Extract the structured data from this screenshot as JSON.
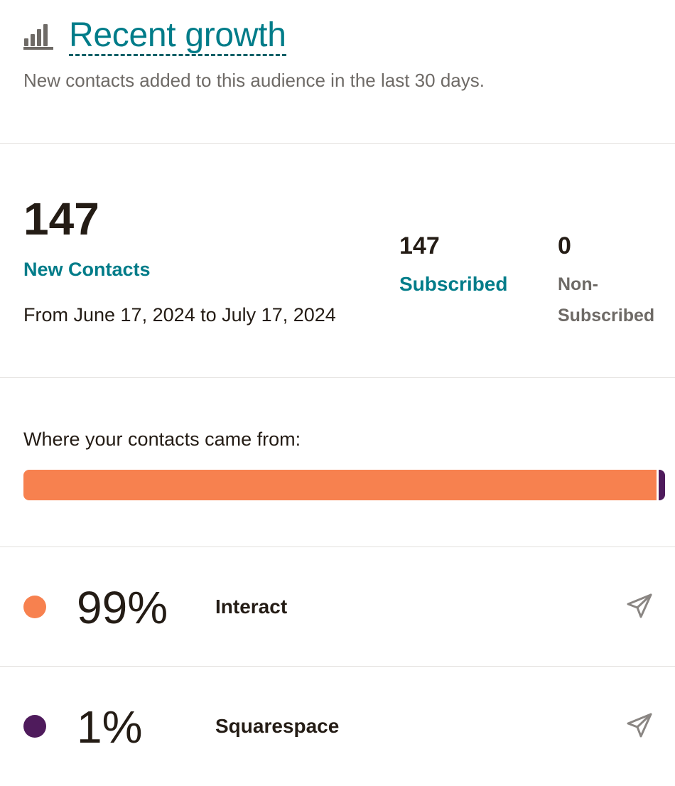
{
  "header": {
    "title": "Recent growth",
    "subtitle": "New contacts added to this audience in the last 30 days.",
    "icon": "bar-chart-icon"
  },
  "summary": {
    "total": "147",
    "total_label": "New Contacts",
    "date_range": "From June 17, 2024 to July 17, 2024",
    "subscribed_value": "147",
    "subscribed_label": "Subscribed",
    "non_subscribed_value": "0",
    "non_subscribed_label_line1": "Non-",
    "non_subscribed_label_line2": "Subscribed"
  },
  "sources": {
    "heading": "Where your contacts came from:",
    "items": [
      {
        "percent": "99%",
        "share": 0.99,
        "name": "Interact",
        "color": "#f7814f",
        "icon": "send-icon"
      },
      {
        "percent": "1%",
        "share": 0.01,
        "name": "Squarespace",
        "color": "#4f1b5c",
        "icon": "send-icon"
      }
    ]
  },
  "colors": {
    "accent": "#007c89",
    "text": "#241c15",
    "muted": "#6e6a66",
    "divider": "#e2e0dd"
  }
}
